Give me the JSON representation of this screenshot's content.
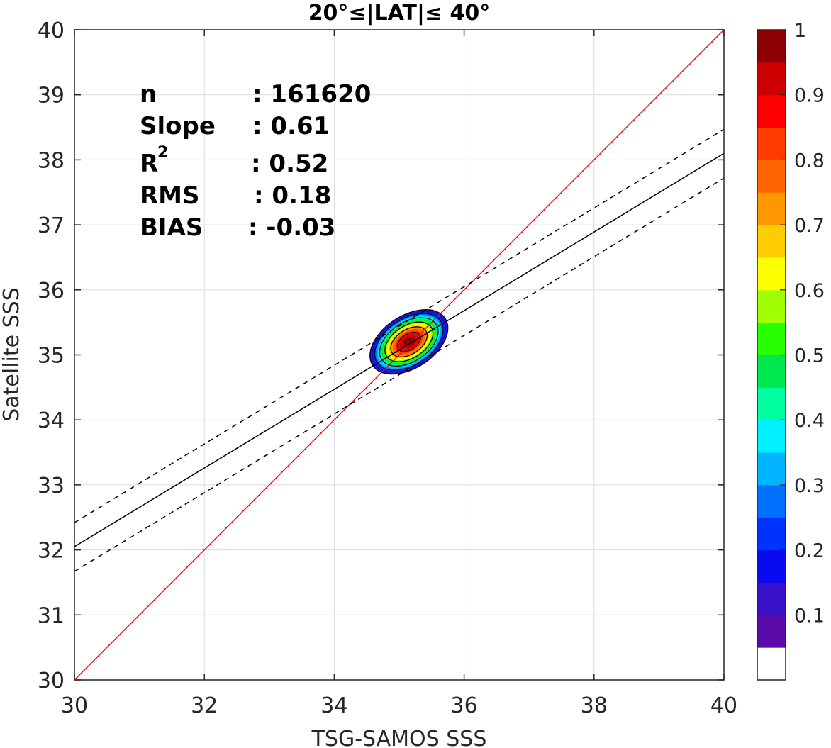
{
  "chart_data": {
    "type": "contour",
    "title": "20°≤|LAT|≤ 40°",
    "xlabel": "TSG-SAMOS SSS",
    "ylabel": "Satellite SSS",
    "xlim": [
      30,
      40
    ],
    "ylim": [
      30,
      40
    ],
    "xticks": [
      "30",
      "32",
      "34",
      "36",
      "38",
      "40"
    ],
    "yticks": [
      "30",
      "31",
      "32",
      "33",
      "34",
      "35",
      "36",
      "37",
      "38",
      "39",
      "40"
    ],
    "grid": true,
    "stats": [
      {
        "label": "n",
        "value": ": 161620"
      },
      {
        "label": "Slope",
        "value": ": 0.61"
      },
      {
        "label": "R",
        "sup": "2",
        "value": ": 0.52"
      },
      {
        "label": "RMS",
        "value": ": 0.18"
      },
      {
        "label": "BIAS",
        "value": ": -0.03"
      }
    ],
    "lines": [
      {
        "kind": "one-to-one",
        "color": "#ff0000",
        "style": "solid",
        "points": [
          [
            30,
            30
          ],
          [
            40,
            40
          ]
        ]
      },
      {
        "kind": "regression",
        "color": "#000000",
        "style": "solid",
        "points": [
          [
            30,
            32.05
          ],
          [
            40,
            38.1
          ]
        ]
      },
      {
        "kind": "regression-upper",
        "color": "#000000",
        "style": "dashed",
        "points": [
          [
            30,
            32.42
          ],
          [
            40,
            38.47
          ]
        ]
      },
      {
        "kind": "regression-lower",
        "color": "#000000",
        "style": "dashed",
        "points": [
          [
            30,
            31.67
          ],
          [
            40,
            37.72
          ]
        ]
      }
    ],
    "density_peak": {
      "x": 35.15,
      "y": 35.2,
      "max": 1.0
    },
    "colorbar": {
      "ticks": [
        "0.1",
        "0.2",
        "0.3",
        "0.4",
        "0.5",
        "0.6",
        "0.7",
        "0.8",
        "0.9",
        "1"
      ],
      "colors": [
        "#ffffff",
        "#5a0aa8",
        "#3a0fc8",
        "#0a0af0",
        "#0032ff",
        "#0070ff",
        "#00b4ff",
        "#00f0ff",
        "#00ffa0",
        "#00e850",
        "#28ff00",
        "#a0ff00",
        "#ffff00",
        "#ffcc00",
        "#ff9800",
        "#ff6400",
        "#ff3c00",
        "#ff0000",
        "#cc0000",
        "#8b0000"
      ]
    }
  }
}
